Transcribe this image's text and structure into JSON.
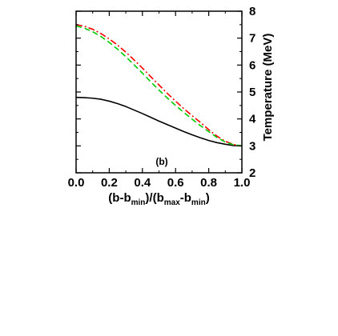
{
  "chart_data": {
    "type": "line",
    "panel_label": "(b)",
    "xlabel": {
      "parts": [
        {
          "text": "(b-b",
          "sub": false
        },
        {
          "text": "min",
          "sub": true
        },
        {
          "text": ")/(b",
          "sub": false
        },
        {
          "text": "max",
          "sub": true
        },
        {
          "text": "-b",
          "sub": false
        },
        {
          "text": "min",
          "sub": true
        },
        {
          "text": ")",
          "sub": false
        }
      ]
    },
    "ylabel": "Temperature (MeV)",
    "xlim": [
      0.0,
      1.0
    ],
    "ylim": [
      2,
      8
    ],
    "xticks": [
      0.0,
      0.2,
      0.4,
      0.6,
      0.8,
      1.0
    ],
    "xtick_labels": [
      "0.0",
      "0.2",
      "0.4",
      "0.6",
      "0.8",
      "1.0"
    ],
    "yticks": [
      2,
      3,
      4,
      5,
      6,
      7,
      8
    ],
    "ytick_labels": [
      "2",
      "3",
      "4",
      "5",
      "6",
      "7",
      "8"
    ],
    "y_axis_side": "right",
    "grid": false,
    "x": [
      0.0,
      0.05,
      0.1,
      0.15,
      0.2,
      0.25,
      0.3,
      0.35,
      0.4,
      0.45,
      0.5,
      0.55,
      0.6,
      0.65,
      0.7,
      0.75,
      0.8,
      0.85,
      0.9,
      0.95,
      1.0
    ],
    "series": [
      {
        "color": "#000000",
        "dash": "solid",
        "values": [
          4.8,
          4.79,
          4.77,
          4.73,
          4.66,
          4.57,
          4.46,
          4.33,
          4.2,
          4.06,
          3.92,
          3.79,
          3.66,
          3.53,
          3.41,
          3.3,
          3.2,
          3.12,
          3.06,
          3.01,
          3.0
        ]
      },
      {
        "color": "#ff0000",
        "dash": "dash-dot",
        "values": [
          7.5,
          7.44,
          7.33,
          7.17,
          6.97,
          6.74,
          6.48,
          6.19,
          5.89,
          5.57,
          5.26,
          4.95,
          4.66,
          4.38,
          4.12,
          3.87,
          3.6,
          3.36,
          3.17,
          3.05,
          3.0
        ]
      },
      {
        "color": "#00cc00",
        "dash": "dashed",
        "values": [
          7.45,
          7.37,
          7.24,
          7.06,
          6.84,
          6.59,
          6.31,
          6.01,
          5.7,
          5.38,
          5.07,
          4.78,
          4.5,
          4.24,
          3.99,
          3.75,
          3.53,
          3.31,
          3.14,
          3.04,
          3.0
        ]
      }
    ]
  }
}
